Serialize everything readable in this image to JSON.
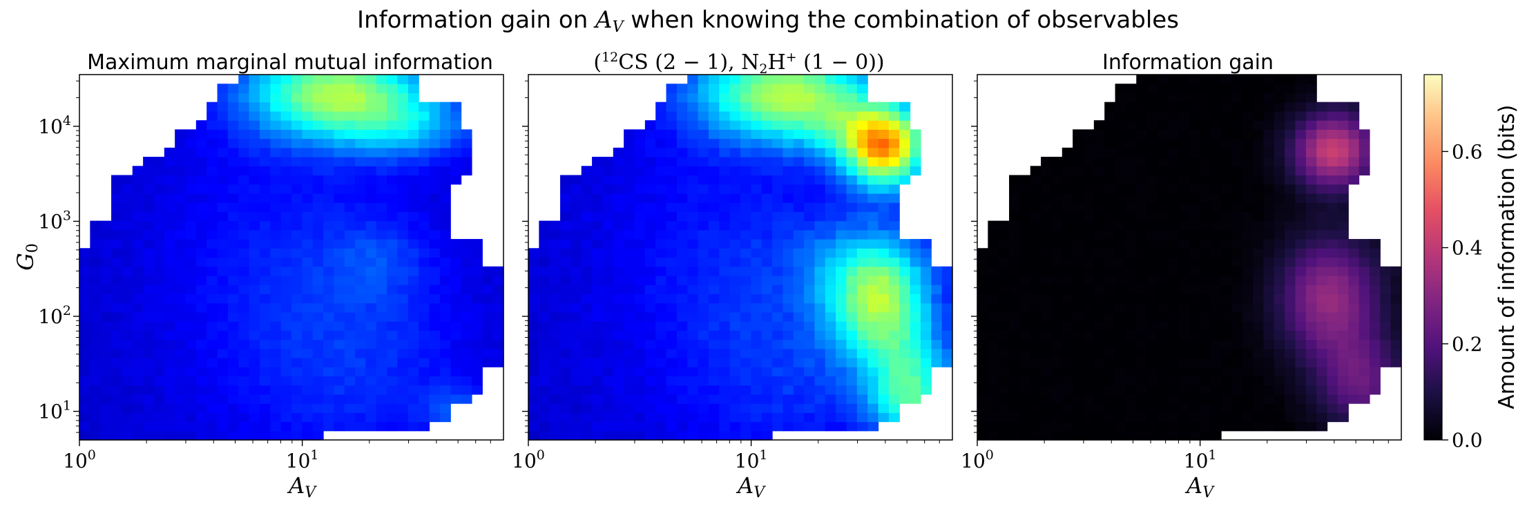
{
  "suptitle": "Information gain on A_V when knowing the combination of observables",
  "panels": [
    {
      "title": "Maximum marginal mutual information",
      "colormap": "jet"
    },
    {
      "title": "(12CS (2 − 1), N2H+ (1 − 0))",
      "colormap": "jet"
    },
    {
      "title": "Information gain",
      "colormap": "magma"
    }
  ],
  "axes": {
    "xlabel": "A_V",
    "ylabel": "G_0",
    "x_scale": "log",
    "y_scale": "log",
    "xlim": [
      1,
      80
    ],
    "ylim": [
      5,
      35000
    ],
    "x_ticks": [
      {
        "value": 1,
        "label": "10^0"
      },
      {
        "value": 10,
        "label": "10^1"
      }
    ],
    "y_ticks": [
      {
        "value": 10,
        "label": "10^1"
      },
      {
        "value": 100,
        "label": "10^2"
      },
      {
        "value": 1000,
        "label": "10^3"
      },
      {
        "value": 10000,
        "label": "10^4"
      }
    ]
  },
  "colorbar": {
    "label": "Amount of information (bits)",
    "range": [
      0.0,
      0.76
    ],
    "ticks": [
      "0.0",
      "0.2",
      "0.4",
      "0.6"
    ],
    "tick_values": [
      0.0,
      0.2,
      0.4,
      0.6
    ],
    "colormap": "magma"
  },
  "chart_data": [
    {
      "type": "heatmap",
      "title": "Maximum marginal mutual information",
      "xlabel": "A_V",
      "ylabel": "G_0",
      "x_scale": "log",
      "y_scale": "log",
      "xlim": [
        1,
        80
      ],
      "ylim": [
        5,
        35000
      ],
      "value_range": [
        0,
        0.76
      ],
      "colormap": "jet",
      "notes": "approx. 0.1 over most of the domain, rising to 0.4-0.5 for G_0 above ~3e3 and A_V ~ 7-30"
    },
    {
      "type": "heatmap",
      "title": "(12CS (2 − 1), N2H+ (1 − 0))",
      "xlabel": "A_V",
      "ylabel": "G_0",
      "x_scale": "log",
      "y_scale": "log",
      "xlim": [
        1,
        80
      ],
      "ylim": [
        5,
        35000
      ],
      "value_range": [
        0,
        0.76
      ],
      "colormap": "jet",
      "notes": "similar to first panel with extra information (0.3-0.55) for A_V ~ 20-60 across G_0 ~ 30-3e3"
    },
    {
      "type": "heatmap",
      "title": "Information gain",
      "xlabel": "A_V",
      "ylabel": "G_0",
      "x_scale": "log",
      "y_scale": "log",
      "xlim": [
        1,
        80
      ],
      "ylim": [
        5,
        35000
      ],
      "value_range": [
        0,
        0.76
      ],
      "colormap": "magma",
      "notes": "near 0 for A_V < 15, up to ~0.5 near A_V ~ 40, G_0 ~ 1e3"
    }
  ]
}
